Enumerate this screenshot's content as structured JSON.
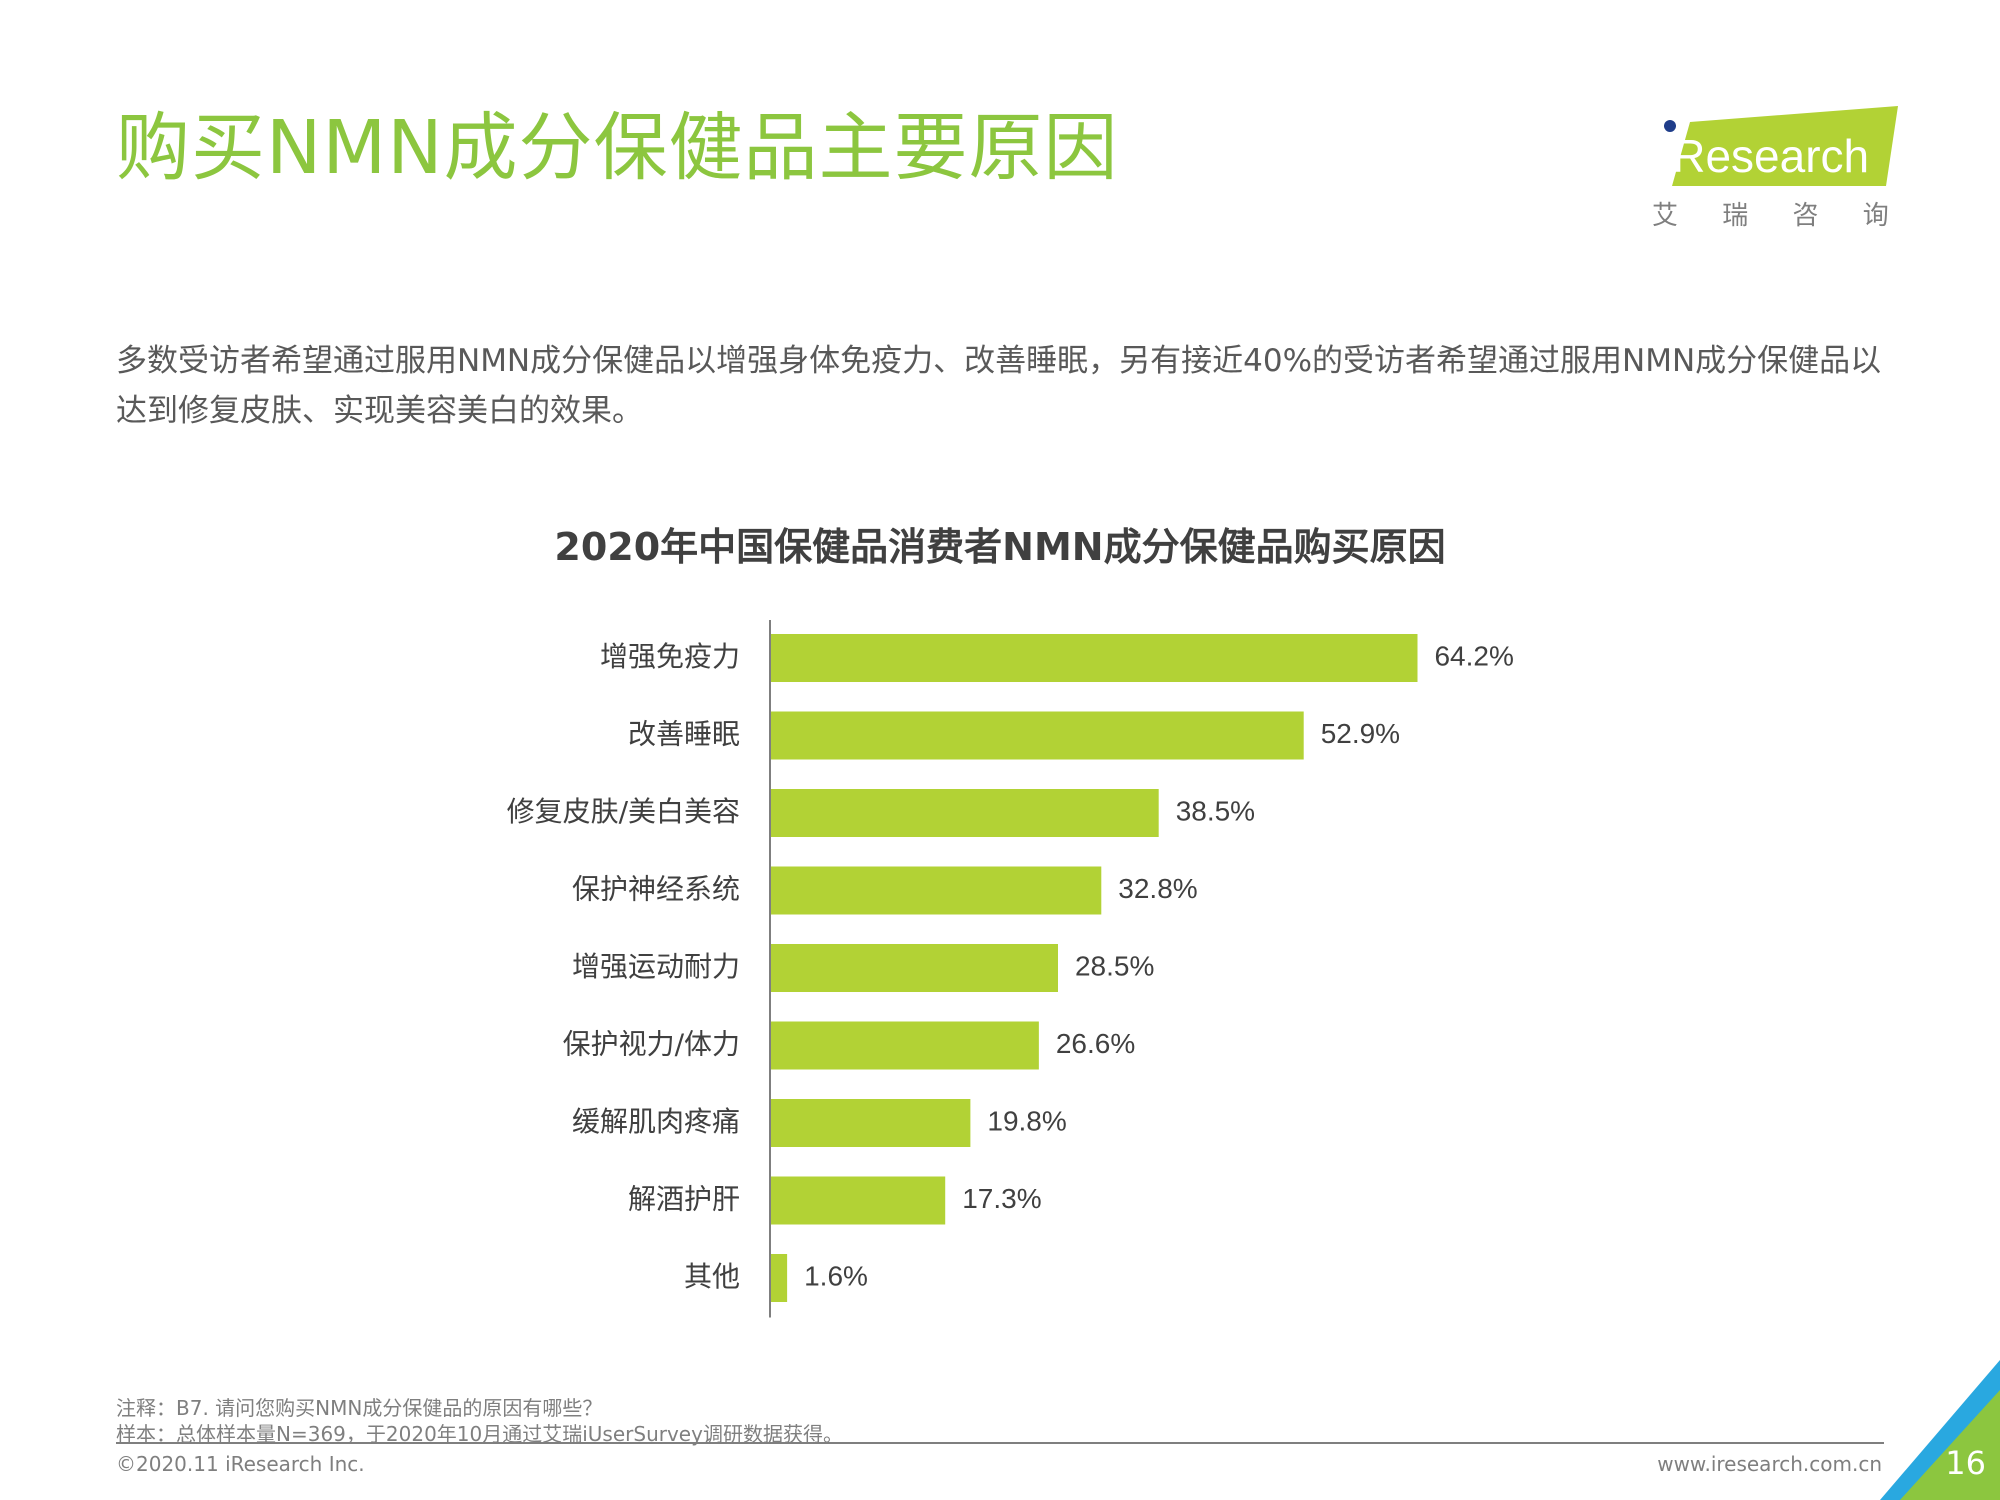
{
  "page": {
    "title": "购买NMN成分保健品主要原因",
    "subtitle": "多数受访者希望通过服用NMN成分保健品以增强身体免疫力、改善睡眠，另有接近40%的受访者希望通过服用NMN成分保健品以达到修复皮肤、实现美容美白的效果。",
    "logo_text": "iResearch",
    "logo_cn": "艾 瑞 咨 询",
    "note_line1": "注释：B7. 请问您购买NMN成分保健品的原因有哪些？",
    "note_line2": "样本：总体样本量N=369，于2020年10月通过艾瑞iUserSurvey调研数据获得。",
    "copyright": "©2020.11 iResearch Inc.",
    "website": "www.iresearch.com.cn",
    "page_number": "16"
  },
  "colors": {
    "bar": "#b2d235",
    "title": "#8cc63f",
    "text": "#404040",
    "axis": "#7f7f7f",
    "corner_blue": "#29a8e0",
    "corner_green": "#8cc63f"
  },
  "chart_data": {
    "type": "bar",
    "orientation": "horizontal",
    "title": "2020年中国保健品消费者NMN成分保健品购买原因",
    "categories": [
      "增强免疫力",
      "改善睡眠",
      "修复皮肤/美白美容",
      "保护神经系统",
      "增强运动耐力",
      "保护视力/体力",
      "缓解肌肉疼痛",
      "解酒护肝",
      "其他"
    ],
    "values": [
      64.2,
      52.9,
      38.5,
      32.8,
      28.5,
      26.6,
      19.8,
      17.3,
      1.6
    ],
    "value_labels": [
      "64.2%",
      "52.9%",
      "38.5%",
      "32.8%",
      "28.5%",
      "26.6%",
      "19.8%",
      "17.3%",
      "1.6%"
    ],
    "xlim": [
      0,
      100
    ],
    "grid": false,
    "legend": "none"
  }
}
